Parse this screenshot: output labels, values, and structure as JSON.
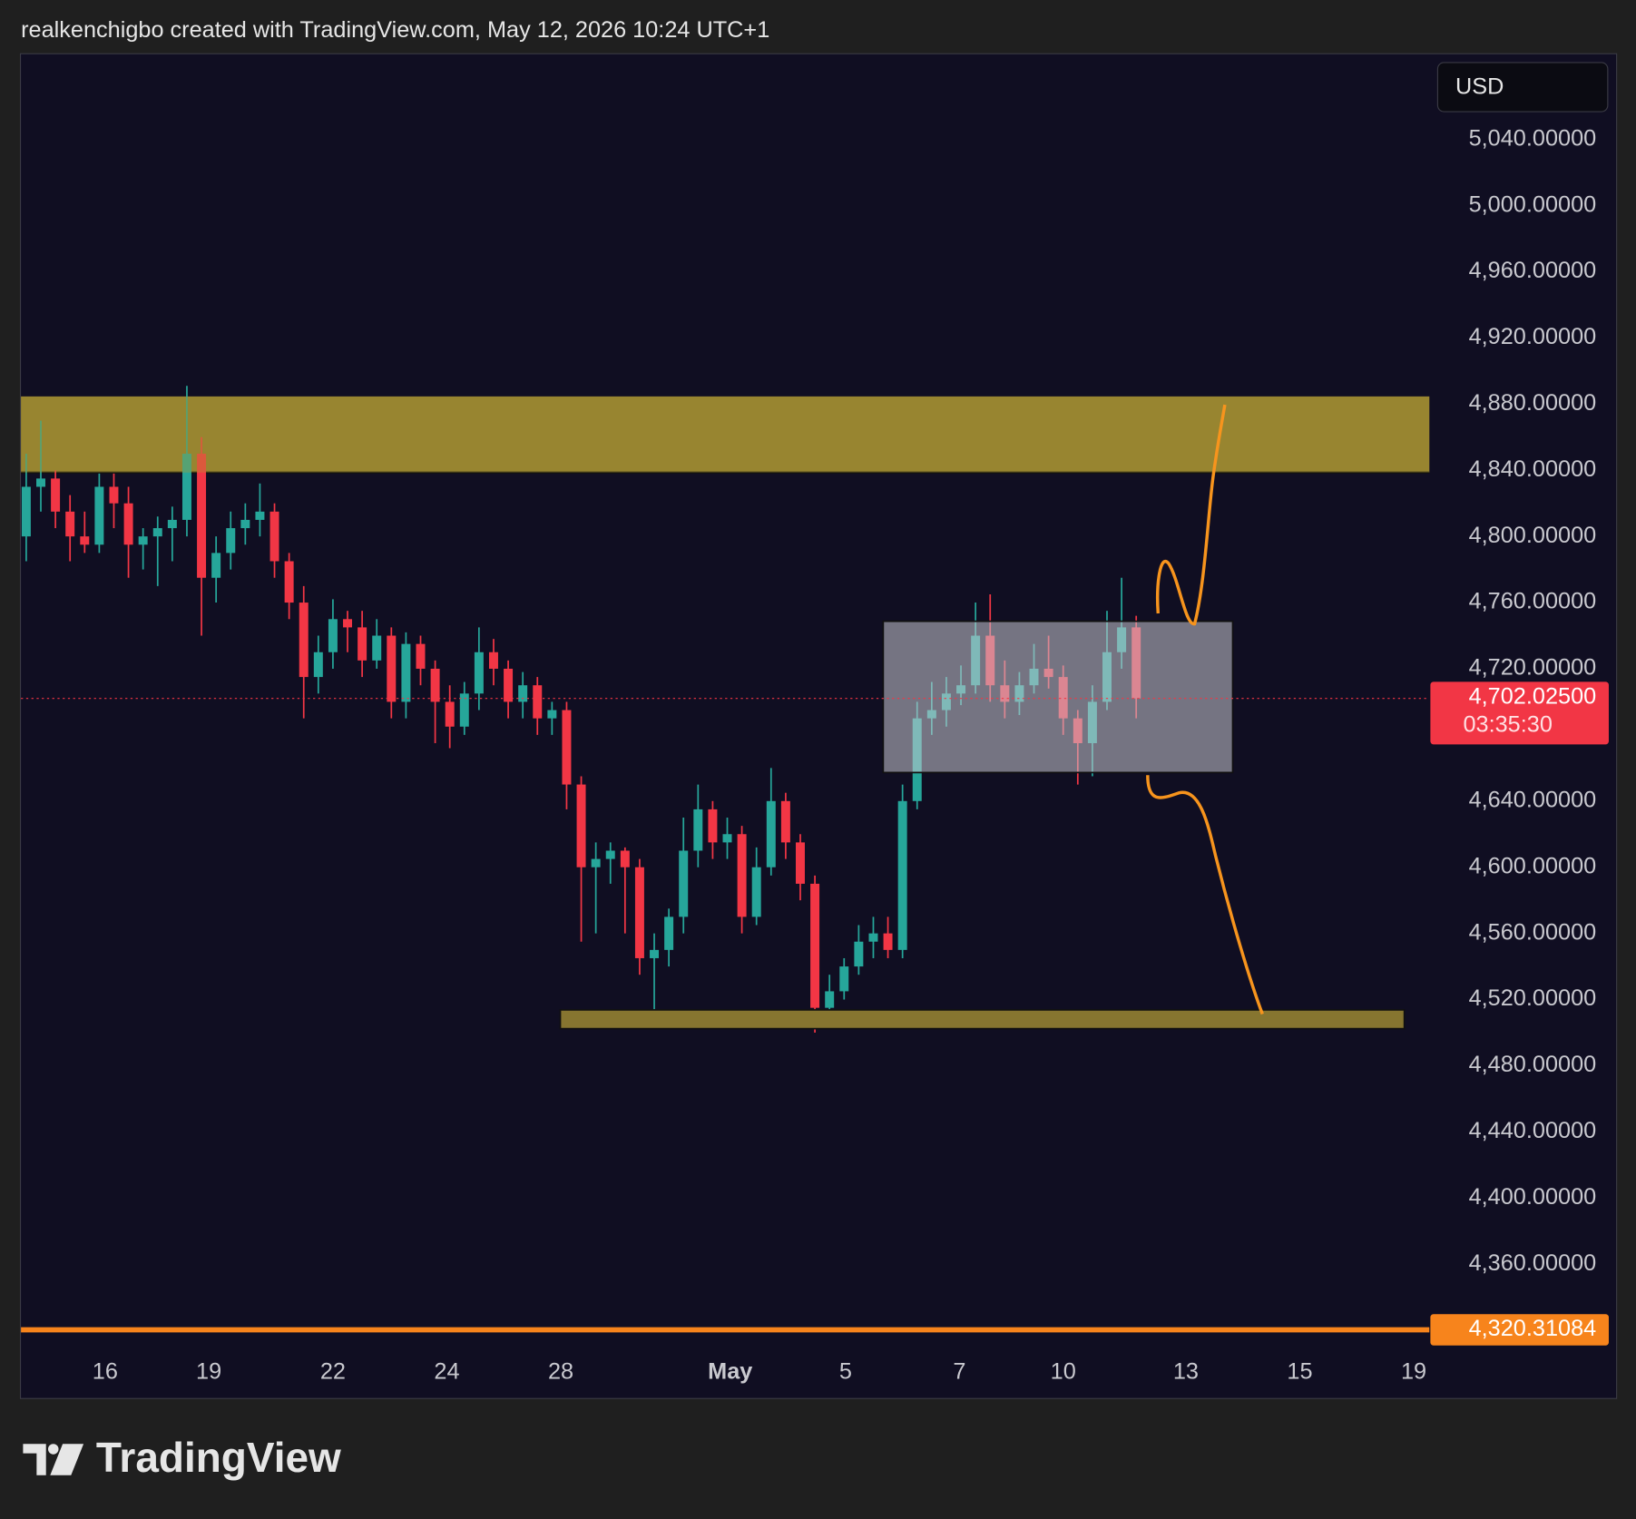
{
  "header": "realkenchigbo created with TradingView.com, May 12, 2026 10:24 UTC+1",
  "brand": "TradingView",
  "chart_data": {
    "type": "candlestick",
    "currency": "USD",
    "up_color": "#26a69a",
    "down_color": "#f23645",
    "open": [
      4800,
      4830,
      4835,
      4815,
      4800,
      4795,
      4830,
      4820,
      4795,
      4800,
      4805,
      4810,
      4850,
      4775,
      4790,
      4805,
      4810,
      4815,
      4785,
      4760,
      4715,
      4730,
      4750,
      4745,
      4725,
      4740,
      4700,
      4735,
      4720,
      4700,
      4685,
      4705,
      4730,
      4720,
      4700,
      4710,
      4690,
      4695,
      4650,
      4600,
      4605,
      4610,
      4600,
      4545,
      4550,
      4570,
      4610,
      4635,
      4615,
      4620,
      4570,
      4600,
      4640,
      4615,
      4590,
      4515,
      4525,
      4540,
      4555,
      4560,
      4550,
      4640,
      4690,
      4695,
      4705,
      4710,
      4740,
      4710,
      4700,
      4710,
      4720,
      4715,
      4690,
      4675,
      4700,
      4730,
      4745
    ],
    "high": [
      4850,
      4870,
      4840,
      4825,
      4815,
      4838,
      4838,
      4830,
      4805,
      4812,
      4818,
      4891,
      4860,
      4800,
      4815,
      4820,
      4832,
      4820,
      4790,
      4770,
      4740,
      4762,
      4755,
      4755,
      4750,
      4745,
      4742,
      4740,
      4725,
      4710,
      4712,
      4745,
      4738,
      4725,
      4718,
      4715,
      4700,
      4700,
      4655,
      4615,
      4615,
      4612,
      4605,
      4560,
      4575,
      4630,
      4650,
      4640,
      4630,
      4625,
      4612,
      4660,
      4645,
      4620,
      4595,
      4535,
      4545,
      4565,
      4570,
      4570,
      4650,
      4700,
      4712,
      4715,
      4722,
      4760,
      4765,
      4725,
      4718,
      4735,
      4740,
      4722,
      4695,
      4710,
      4755,
      4775,
      4752
    ],
    "low": [
      4785,
      4815,
      4805,
      4785,
      4790,
      4790,
      4805,
      4775,
      4780,
      4770,
      4785,
      4800,
      4740,
      4760,
      4780,
      4795,
      4800,
      4775,
      4750,
      4690,
      4705,
      4720,
      4730,
      4715,
      4720,
      4690,
      4690,
      4710,
      4675,
      4672,
      4680,
      4695,
      4710,
      4690,
      4690,
      4680,
      4680,
      4635,
      4555,
      4560,
      4590,
      4560,
      4535,
      4510,
      4540,
      4560,
      4600,
      4605,
      4605,
      4560,
      4565,
      4595,
      4605,
      4580,
      4500,
      4510,
      4520,
      4535,
      4545,
      4545,
      4545,
      4635,
      4680,
      4685,
      4698,
      4705,
      4700,
      4690,
      4692,
      4705,
      4708,
      4680,
      4650,
      4655,
      4695,
      4720,
      4690
    ],
    "close": [
      4830,
      4835,
      4815,
      4800,
      4795,
      4830,
      4820,
      4795,
      4800,
      4805,
      4810,
      4850,
      4775,
      4790,
      4805,
      4810,
      4815,
      4785,
      4760,
      4715,
      4730,
      4750,
      4745,
      4725,
      4740,
      4700,
      4735,
      4720,
      4700,
      4685,
      4705,
      4730,
      4720,
      4700,
      4710,
      4690,
      4695,
      4650,
      4600,
      4605,
      4610,
      4600,
      4545,
      4550,
      4570,
      4610,
      4635,
      4615,
      4620,
      4570,
      4600,
      4640,
      4615,
      4590,
      4515,
      4525,
      4540,
      4555,
      4560,
      4550,
      4640,
      4690,
      4695,
      4705,
      4710,
      4740,
      4710,
      4700,
      4710,
      4720,
      4715,
      4690,
      4675,
      4700,
      4730,
      4745,
      4702.025
    ],
    "xlim": [
      -0.36,
      96.07
    ],
    "xticks": [
      {
        "value": 5.4,
        "label": "16"
      },
      {
        "value": 12.5,
        "label": "19"
      },
      {
        "value": 21.0,
        "label": "22"
      },
      {
        "value": 28.8,
        "label": "24"
      },
      {
        "value": 36.6,
        "label": "28"
      },
      {
        "value": 48.2,
        "label": "May"
      },
      {
        "value": 56.1,
        "label": "5"
      },
      {
        "value": 63.9,
        "label": "7"
      },
      {
        "value": 71.0,
        "label": "10"
      },
      {
        "value": 79.4,
        "label": "13"
      },
      {
        "value": 87.2,
        "label": "15"
      },
      {
        "value": 95.0,
        "label": "19"
      }
    ],
    "ylim": [
      4307.5,
      5091.5
    ],
    "yticks": [
      {
        "value": 5040,
        "label": "5,040.00000"
      },
      {
        "value": 5000,
        "label": "5,000.00000"
      },
      {
        "value": 4960,
        "label": "4,960.00000"
      },
      {
        "value": 4920,
        "label": "4,920.00000"
      },
      {
        "value": 4880,
        "label": "4,880.00000"
      },
      {
        "value": 4840,
        "label": "4,840.00000"
      },
      {
        "value": 4800,
        "label": "4,800.00000"
      },
      {
        "value": 4760,
        "label": "4,760.00000"
      },
      {
        "value": 4720,
        "label": "4,720.00000"
      },
      {
        "value": 4640,
        "label": "4,640.00000"
      },
      {
        "value": 4600,
        "label": "4,600.00000"
      },
      {
        "value": 4560,
        "label": "4,560.00000"
      },
      {
        "value": 4520,
        "label": "4,520.00000"
      },
      {
        "value": 4480,
        "label": "4,480.00000"
      },
      {
        "value": 4440,
        "label": "4,440.00000"
      },
      {
        "value": 4400,
        "label": "4,400.00000"
      },
      {
        "value": 4360,
        "label": "4,360.00000"
      }
    ],
    "last_price": {
      "value": 4702.025,
      "label": "4,702.02500",
      "color": "#f23645"
    },
    "countdown": "03:35:30",
    "level_line": {
      "value": 4320.31084,
      "label": "4,320.31084",
      "color": "#f7841c"
    }
  }
}
